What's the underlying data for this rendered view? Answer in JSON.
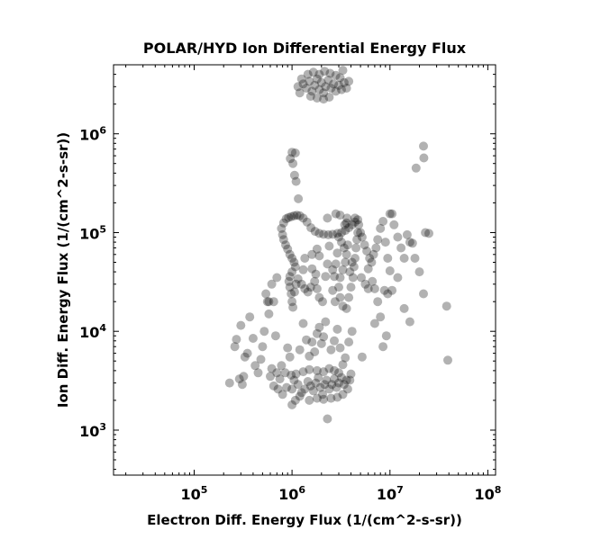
{
  "chart_data": {
    "type": "scatter",
    "title": "POLAR/HYD  Ion Differential Energy Flux",
    "xlabel": "Electron Diff. Energy Flux (1/(cm^2-s-sr))",
    "ylabel": "Ion Diff. Energy Flux (1/(cm^2-s-sr))",
    "xscale": "log",
    "yscale": "log",
    "xlim": [
      15000,
      120000000
    ],
    "ylim": [
      350,
      5000000
    ],
    "x_ticks": [
      {
        "value": 100000,
        "base": "10",
        "exp": "5"
      },
      {
        "value": 1000000,
        "base": "10",
        "exp": "6"
      },
      {
        "value": 10000000,
        "base": "10",
        "exp": "7"
      },
      {
        "value": 100000000,
        "base": "10",
        "exp": "8"
      }
    ],
    "y_ticks": [
      {
        "value": 1000,
        "base": "10",
        "exp": "3"
      },
      {
        "value": 10000,
        "base": "10",
        "exp": "4"
      },
      {
        "value": 100000,
        "base": "10",
        "exp": "5"
      },
      {
        "value": 1000000,
        "base": "10",
        "exp": "6"
      }
    ],
    "grid": false,
    "marker_color": "#000000",
    "marker_opacity": 0.3,
    "points": [
      [
        960000,
        560000
      ],
      [
        1000000,
        650000
      ],
      [
        1080000,
        640000
      ],
      [
        1020000,
        500000
      ],
      [
        1060000,
        380000
      ],
      [
        1100000,
        330000
      ],
      [
        1160000,
        220000
      ],
      [
        22000000,
        750000
      ],
      [
        22200000,
        570000
      ],
      [
        18500000,
        450000
      ],
      [
        780000,
        110000
      ],
      [
        820000,
        125000
      ],
      [
        870000,
        138000
      ],
      [
        920000,
        142000
      ],
      [
        980000,
        145000
      ],
      [
        1050000,
        148000
      ],
      [
        1120000,
        150000
      ],
      [
        1200000,
        148000
      ],
      [
        1300000,
        140000
      ],
      [
        1420000,
        128000
      ],
      [
        1560000,
        112000
      ],
      [
        1720000,
        103000
      ],
      [
        1900000,
        98000
      ],
      [
        2100000,
        96000
      ],
      [
        2350000,
        95000
      ],
      [
        2600000,
        96000
      ],
      [
        2900000,
        98000
      ],
      [
        3200000,
        100000
      ],
      [
        3500000,
        105000
      ],
      [
        3800000,
        112000
      ],
      [
        4100000,
        120000
      ],
      [
        4400000,
        128000
      ],
      [
        4700000,
        135000
      ],
      [
        800000,
        95000
      ],
      [
        820000,
        85000
      ],
      [
        860000,
        75000
      ],
      [
        900000,
        68000
      ],
      [
        950000,
        60000
      ],
      [
        1000000,
        55000
      ],
      [
        1050000,
        50000
      ],
      [
        1080000,
        45000
      ],
      [
        1000000,
        40000
      ],
      [
        950000,
        36000
      ],
      [
        930000,
        32000
      ],
      [
        950000,
        28000
      ],
      [
        980000,
        24000
      ],
      [
        1000000,
        20000
      ],
      [
        1020000,
        17500
      ],
      [
        1060000,
        25000
      ],
      [
        1100000,
        30000
      ],
      [
        1150000,
        34000
      ],
      [
        1250000,
        30000
      ],
      [
        1350000,
        27000
      ],
      [
        1450000,
        25000
      ],
      [
        1550000,
        28000
      ],
      [
        1700000,
        32000
      ],
      [
        1800000,
        27000
      ],
      [
        1900000,
        22000
      ],
      [
        2050000,
        20000
      ],
      [
        1300000,
        42000
      ],
      [
        1600000,
        43000
      ],
      [
        1750000,
        38000
      ],
      [
        3000000,
        90000
      ],
      [
        3200000,
        80000
      ],
      [
        3400000,
        70000
      ],
      [
        3600000,
        60000
      ],
      [
        3500000,
        50000
      ],
      [
        3300000,
        42000
      ],
      [
        3100000,
        35000
      ],
      [
        3000000,
        28000
      ],
      [
        3100000,
        22000
      ],
      [
        3300000,
        18000
      ],
      [
        3600000,
        17000
      ],
      [
        3800000,
        22000
      ],
      [
        4000000,
        28000
      ],
      [
        4200000,
        35000
      ],
      [
        4300000,
        45000
      ],
      [
        4400000,
        55000
      ],
      [
        4500000,
        70000
      ],
      [
        4600000,
        85000
      ],
      [
        4700000,
        100000
      ],
      [
        4800000,
        120000
      ],
      [
        2900000,
        62000
      ],
      [
        2800000,
        48000
      ],
      [
        2700000,
        36000
      ],
      [
        2600000,
        26000
      ],
      [
        2750000,
        20000
      ],
      [
        3900000,
        40000
      ],
      [
        4100000,
        50000
      ],
      [
        3700000,
        75000
      ],
      [
        3450000,
        120000
      ],
      [
        3650000,
        140000
      ],
      [
        1300000,
        3200000
      ],
      [
        1400000,
        2900000
      ],
      [
        1500000,
        3400000
      ],
      [
        1600000,
        2700000
      ],
      [
        1700000,
        3100000
      ],
      [
        1800000,
        3600000
      ],
      [
        1900000,
        2800000
      ],
      [
        2000000,
        3300000
      ],
      [
        2100000,
        2600000
      ],
      [
        2200000,
        3000000
      ],
      [
        2350000,
        3500000
      ],
      [
        2500000,
        2900000
      ],
      [
        2650000,
        3200000
      ],
      [
        2800000,
        2700000
      ],
      [
        3000000,
        3100000
      ],
      [
        3200000,
        2800000
      ],
      [
        3400000,
        3300000
      ],
      [
        1450000,
        4000000
      ],
      [
        1650000,
        4200000
      ],
      [
        1900000,
        4000000
      ],
      [
        2150000,
        4300000
      ],
      [
        2450000,
        4100000
      ],
      [
        2800000,
        3900000
      ],
      [
        3100000,
        3700000
      ],
      [
        1550000,
        2400000
      ],
      [
        1800000,
        2300000
      ],
      [
        2100000,
        2250000
      ],
      [
        2400000,
        2350000
      ],
      [
        1200000,
        2600000
      ],
      [
        1150000,
        3000000
      ],
      [
        1250000,
        3600000
      ],
      [
        3600000,
        2900000
      ],
      [
        3800000,
        3400000
      ],
      [
        3300000,
        4400000
      ],
      [
        1000000,
        2600
      ],
      [
        1050000,
        3200
      ],
      [
        1150000,
        2900
      ],
      [
        1250000,
        2400
      ],
      [
        1350000,
        2600
      ],
      [
        1450000,
        3100
      ],
      [
        1550000,
        2800
      ],
      [
        1650000,
        2500
      ],
      [
        1750000,
        3000
      ],
      [
        1850000,
        3400
      ],
      [
        1950000,
        2700
      ],
      [
        2050000,
        2300
      ],
      [
        2150000,
        2900
      ],
      [
        2250000,
        3200
      ],
      [
        2400000,
        2600
      ],
      [
        2550000,
        2900
      ],
      [
        2700000,
        3300
      ],
      [
        2850000,
        2700
      ],
      [
        3000000,
        3000
      ],
      [
        3200000,
        3400
      ],
      [
        3400000,
        2900
      ],
      [
        3600000,
        3200
      ],
      [
        1100000,
        3700
      ],
      [
        1300000,
        3900
      ],
      [
        1500000,
        4100
      ],
      [
        1800000,
        4000
      ],
      [
        2100000,
        3900
      ],
      [
        2400000,
        4200
      ],
      [
        2700000,
        4000
      ],
      [
        3000000,
        3800
      ],
      [
        1200000,
        2200
      ],
      [
        1500000,
        2000
      ],
      [
        1800000,
        2100
      ],
      [
        2100000,
        2050
      ],
      [
        2500000,
        2100
      ],
      [
        2900000,
        2150
      ],
      [
        3300000,
        2300
      ],
      [
        3700000,
        2600
      ],
      [
        3900000,
        3200
      ],
      [
        4000000,
        3700
      ],
      [
        230000,
        3000
      ],
      [
        260000,
        7000
      ],
      [
        270000,
        8300
      ],
      [
        290000,
        3300
      ],
      [
        300000,
        11500
      ],
      [
        310000,
        2900
      ],
      [
        320000,
        3500
      ],
      [
        330000,
        5500
      ],
      [
        350000,
        6000
      ],
      [
        370000,
        14000
      ],
      [
        400000,
        8500
      ],
      [
        420000,
        4500
      ],
      [
        450000,
        3800
      ],
      [
        480000,
        5200
      ],
      [
        500000,
        7000
      ],
      [
        520000,
        10000
      ],
      [
        540000,
        24000
      ],
      [
        560000,
        20000
      ],
      [
        580000,
        15000
      ],
      [
        600000,
        3500
      ],
      [
        620000,
        4200
      ],
      [
        650000,
        2800
      ],
      [
        680000,
        9000
      ],
      [
        700000,
        3800
      ],
      [
        720000,
        2600
      ],
      [
        750000,
        3300
      ],
      [
        780000,
        4500
      ],
      [
        800000,
        2300
      ],
      [
        850000,
        3800
      ],
      [
        880000,
        2700
      ],
      [
        900000,
        6800
      ],
      [
        950000,
        5500
      ],
      [
        980000,
        3600
      ],
      [
        1000000,
        1800
      ],
      [
        1080000,
        2000
      ],
      [
        1200000,
        6500
      ],
      [
        1300000,
        12000
      ],
      [
        1400000,
        8200
      ],
      [
        1500000,
        5600
      ],
      [
        1600000,
        7800
      ],
      [
        1700000,
        6200
      ],
      [
        1800000,
        9500
      ],
      [
        1900000,
        11000
      ],
      [
        2000000,
        7500
      ],
      [
        2100000,
        8800
      ],
      [
        2200000,
        12500
      ],
      [
        2300000,
        1300
      ],
      [
        2500000,
        6500
      ],
      [
        2700000,
        8000
      ],
      [
        2900000,
        10500
      ],
      [
        3100000,
        6800
      ],
      [
        3300000,
        4600
      ],
      [
        3500000,
        5400
      ],
      [
        3800000,
        7800
      ],
      [
        4100000,
        10000
      ],
      [
        580000,
        20000
      ],
      [
        650000,
        20000
      ],
      [
        620000,
        30000
      ],
      [
        700000,
        35000
      ],
      [
        1350000,
        55000
      ],
      [
        1600000,
        60000
      ],
      [
        1900000,
        58000
      ],
      [
        2300000,
        48000
      ],
      [
        2600000,
        42000
      ],
      [
        2200000,
        36000
      ],
      [
        2800000,
        155000
      ],
      [
        3100000,
        150000
      ],
      [
        2300000,
        140000
      ],
      [
        3600000,
        125000
      ],
      [
        4400000,
        140000
      ],
      [
        1800000,
        68000
      ],
      [
        2400000,
        73000
      ],
      [
        5000000,
        100000
      ],
      [
        5200000,
        90000
      ],
      [
        5500000,
        75000
      ],
      [
        5800000,
        65000
      ],
      [
        6200000,
        55000
      ],
      [
        6500000,
        50000
      ],
      [
        6800000,
        60000
      ],
      [
        7200000,
        70000
      ],
      [
        7500000,
        85000
      ],
      [
        8000000,
        110000
      ],
      [
        8500000,
        130000
      ],
      [
        9000000,
        80000
      ],
      [
        9500000,
        55000
      ],
      [
        10000000,
        155000
      ],
      [
        10500000,
        155000
      ],
      [
        11000000,
        120000
      ],
      [
        12000000,
        90000
      ],
      [
        13000000,
        70000
      ],
      [
        14000000,
        55000
      ],
      [
        15000000,
        95000
      ],
      [
        16000000,
        80000
      ],
      [
        17000000,
        78000
      ],
      [
        18000000,
        55000
      ],
      [
        20000000,
        40000
      ],
      [
        23000000,
        100000
      ],
      [
        25000000,
        98000
      ],
      [
        5100000,
        35000
      ],
      [
        5600000,
        30000
      ],
      [
        6000000,
        27000
      ],
      [
        6600000,
        32000
      ],
      [
        7000000,
        27000
      ],
      [
        7500000,
        20000
      ],
      [
        8000000,
        14000
      ],
      [
        8800000,
        26000
      ],
      [
        9500000,
        24000
      ],
      [
        10500000,
        26000
      ],
      [
        12000000,
        35000
      ],
      [
        9200000,
        9000
      ],
      [
        8500000,
        7000
      ],
      [
        7000000,
        12000
      ],
      [
        5200000,
        5500
      ],
      [
        14000000,
        17000
      ],
      [
        16000000,
        12500
      ],
      [
        22000000,
        24000
      ],
      [
        38000000,
        18000
      ],
      [
        39000000,
        5100
      ],
      [
        10000000,
        41000
      ],
      [
        6000000,
        43000
      ]
    ]
  }
}
